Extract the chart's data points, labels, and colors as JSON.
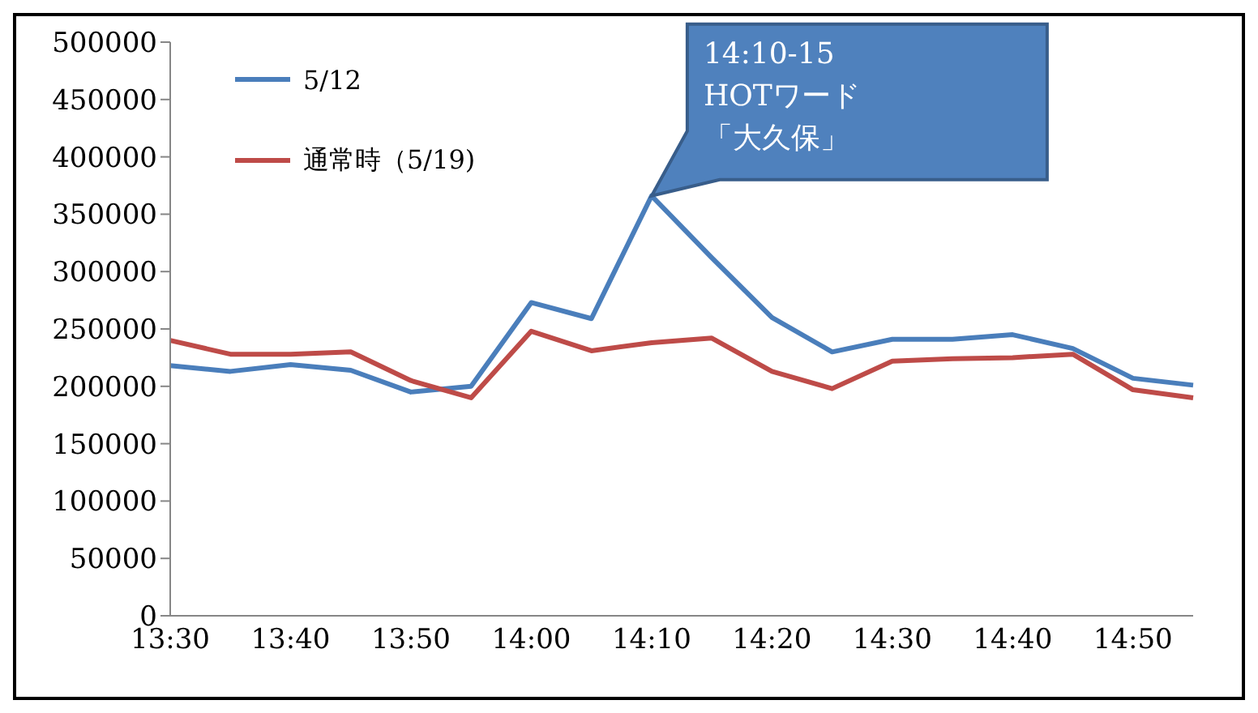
{
  "chart_data": {
    "type": "line",
    "categories": [
      "13:30",
      null,
      "13:40",
      null,
      "13:50",
      null,
      "14:00",
      null,
      "14:10",
      null,
      "14:20",
      null,
      "14:30",
      null,
      "14:40",
      null,
      "14:50",
      null
    ],
    "series": [
      {
        "name": "5/12",
        "color": "#4a7ebb",
        "values": [
          218000,
          213000,
          219000,
          214000,
          195000,
          200000,
          273000,
          259000,
          366000,
          312000,
          260000,
          230000,
          241000,
          241000,
          245000,
          233000,
          207000,
          201000
        ]
      },
      {
        "name": "通常時（5/19)",
        "color": "#be4b48",
        "values": [
          240000,
          228000,
          228000,
          230000,
          205000,
          190000,
          248000,
          231000,
          238000,
          242000,
          213000,
          198000,
          222000,
          224000,
          225000,
          228000,
          197000,
          190000
        ]
      }
    ],
    "ylim": [
      0,
      500000
    ],
    "yticks": [
      0,
      50000,
      100000,
      150000,
      200000,
      250000,
      300000,
      350000,
      400000,
      450000,
      500000
    ],
    "legend": "top left",
    "marker": "none",
    "line_style": "solid",
    "annotations": [
      {
        "text": "14:10-15\nHOTワード「大久保」",
        "x": "14:10",
        "y": 366000
      }
    ]
  }
}
